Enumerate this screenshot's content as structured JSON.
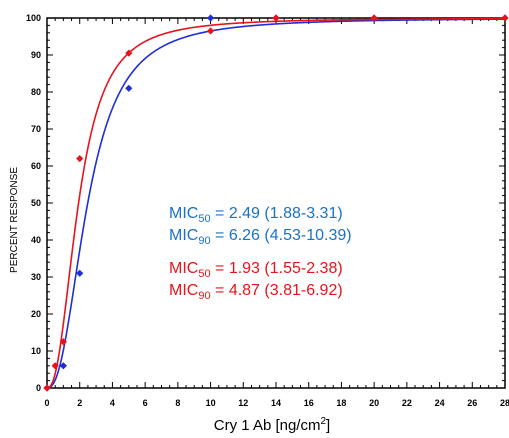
{
  "chart_data": {
    "type": "scatter",
    "xlabel": "Cry 1 Ab [ng/cm",
    "xlabel_sup": "2",
    "xlabel_close": "]",
    "ylabel": "PERCENT RESPONSE",
    "xlim": [
      0,
      28
    ],
    "ylim": [
      0,
      100
    ],
    "xticks": [
      0,
      2,
      4,
      6,
      8,
      10,
      12,
      14,
      16,
      18,
      20,
      22,
      24,
      26,
      28
    ],
    "yticks": [
      0,
      10,
      20,
      30,
      40,
      50,
      60,
      70,
      80,
      90,
      100
    ],
    "grid": false,
    "series": [
      {
        "color": "#1f2ed6",
        "marker": "diamond",
        "points": [
          {
            "x": 0,
            "y": 0
          },
          {
            "x": 1,
            "y": 6
          },
          {
            "x": 2,
            "y": 31
          },
          {
            "x": 5,
            "y": 81
          },
          {
            "x": 10,
            "y": 100
          },
          {
            "x": 14,
            "y": 100
          },
          {
            "x": 20,
            "y": 100
          },
          {
            "x": 28,
            "y": 100
          }
        ],
        "curve": {
          "mic50": 2.49,
          "mic90": 6.26
        }
      },
      {
        "color": "#e8141c",
        "marker": "diamond",
        "points": [
          {
            "x": 0,
            "y": 0
          },
          {
            "x": 0.5,
            "y": 6
          },
          {
            "x": 1,
            "y": 12.5
          },
          {
            "x": 2,
            "y": 62
          },
          {
            "x": 5,
            "y": 90.5
          },
          {
            "x": 10,
            "y": 96.5
          },
          {
            "x": 14,
            "y": 100
          },
          {
            "x": 20,
            "y": 100
          },
          {
            "x": 28,
            "y": 100
          }
        ],
        "curve": {
          "mic50": 1.93,
          "mic90": 4.87
        }
      }
    ],
    "annotations": [
      {
        "prefix": "MIC",
        "sub": "50",
        "text": " = 2.49 (1.88-3.31)",
        "color": "#1a72c4"
      },
      {
        "prefix": "MIC",
        "sub": "90",
        "text": " = 6.26 (4.53-10.39)",
        "color": "#1a72c4"
      },
      {
        "prefix": "MIC",
        "sub": "50",
        "text": " = 1.93 (1.55-2.38)",
        "color": "#e8141c"
      },
      {
        "prefix": "MIC",
        "sub": "90",
        "text": " = 4.87 (3.81-6.92)",
        "color": "#e8141c"
      }
    ]
  }
}
